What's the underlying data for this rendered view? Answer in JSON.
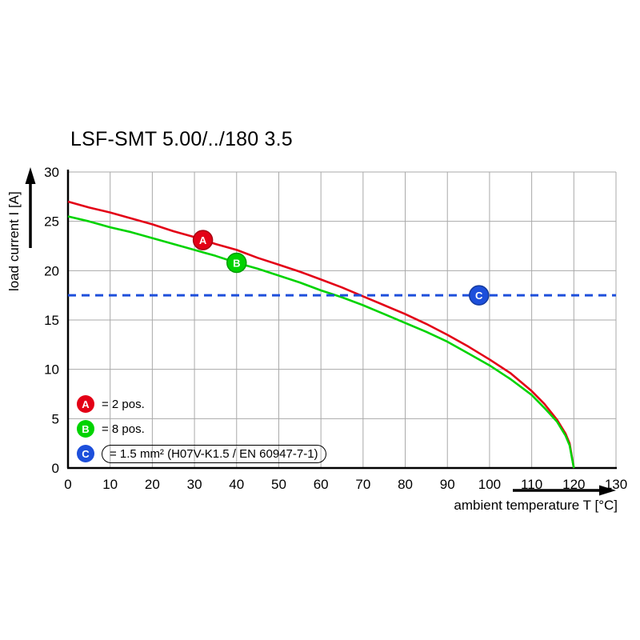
{
  "page": {
    "background": "#ffffff"
  },
  "chart_data": {
    "type": "line",
    "title": "LSF-SMT 5.00/../180 3.5",
    "xlabel": "ambient temperature T [°C]",
    "ylabel": "load current I [A]",
    "xlim": [
      0,
      130
    ],
    "ylim": [
      0,
      30
    ],
    "xticks": [
      0,
      10,
      20,
      30,
      40,
      50,
      60,
      70,
      80,
      90,
      100,
      110,
      120,
      130
    ],
    "yticks": [
      0,
      5,
      10,
      15,
      20,
      25,
      30
    ],
    "grid": true,
    "legend_position": "inside-bottom-left",
    "series": [
      {
        "name": "A",
        "legend": "= 2 pos.",
        "color": "#e30016",
        "edge": "#a50010",
        "points": [
          [
            0,
            27
          ],
          [
            5,
            26.4
          ],
          [
            10,
            25.9
          ],
          [
            15,
            25.3
          ],
          [
            20,
            24.7
          ],
          [
            25,
            24.0
          ],
          [
            30,
            23.4
          ],
          [
            35,
            22.7
          ],
          [
            40,
            22.1
          ],
          [
            45,
            21.3
          ],
          [
            50,
            20.6
          ],
          [
            55,
            19.9
          ],
          [
            60,
            19.1
          ],
          [
            65,
            18.3
          ],
          [
            70,
            17.4
          ],
          [
            75,
            16.5
          ],
          [
            80,
            15.6
          ],
          [
            85,
            14.6
          ],
          [
            90,
            13.5
          ],
          [
            95,
            12.3
          ],
          [
            100,
            11.0
          ],
          [
            105,
            9.6
          ],
          [
            110,
            7.8
          ],
          [
            113,
            6.5
          ],
          [
            116,
            4.9
          ],
          [
            118,
            3.5
          ],
          [
            119,
            2.5
          ],
          [
            120,
            0
          ]
        ],
        "marker": {
          "t": 32,
          "i": 23.1
        }
      },
      {
        "name": "B",
        "legend": "= 8 pos.",
        "color": "#00d300",
        "edge": "#009c00",
        "points": [
          [
            0,
            25.5
          ],
          [
            5,
            25.0
          ],
          [
            10,
            24.4
          ],
          [
            15,
            23.9
          ],
          [
            20,
            23.3
          ],
          [
            25,
            22.7
          ],
          [
            30,
            22.1
          ],
          [
            35,
            21.5
          ],
          [
            40,
            20.8
          ],
          [
            45,
            20.2
          ],
          [
            50,
            19.5
          ],
          [
            55,
            18.8
          ],
          [
            60,
            18.0
          ],
          [
            65,
            17.3
          ],
          [
            70,
            16.5
          ],
          [
            75,
            15.6
          ],
          [
            80,
            14.7
          ],
          [
            85,
            13.8
          ],
          [
            90,
            12.8
          ],
          [
            95,
            11.6
          ],
          [
            100,
            10.4
          ],
          [
            105,
            9.0
          ],
          [
            110,
            7.4
          ],
          [
            113,
            6.1
          ],
          [
            116,
            4.7
          ],
          [
            118,
            3.3
          ],
          [
            119,
            2.3
          ],
          [
            120,
            0
          ]
        ],
        "marker": {
          "t": 40,
          "i": 20.8
        }
      },
      {
        "name": "C",
        "legend": "= 1.5 mm² (H07V-K1.5 / EN 60947-7-1)",
        "color": "#1d4fdb",
        "edge": "#143a9e",
        "style": "dashed",
        "hline": 17.5,
        "marker": {
          "t": 97.5,
          "i": 17.5
        }
      }
    ]
  }
}
